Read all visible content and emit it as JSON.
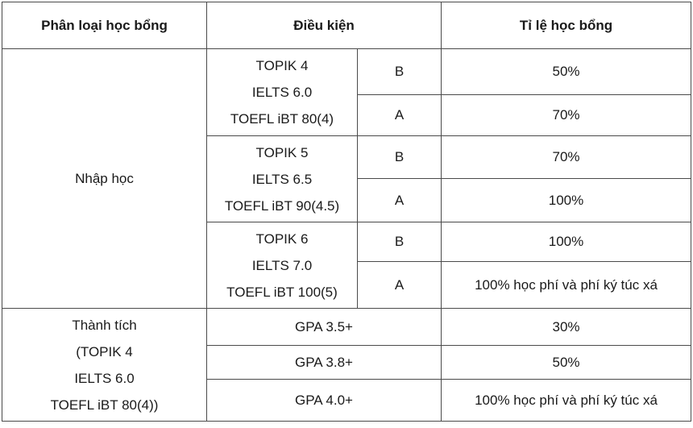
{
  "headers": {
    "category": "Phân loại học bổng",
    "condition": "Điều kiện",
    "rate": "Tỉ lệ học bổng"
  },
  "admission": {
    "label": "Nhập học",
    "groups": [
      {
        "condition_lines": [
          "TOPIK 4",
          "IELTS 6.0",
          "TOEFL iBT 80(4)"
        ],
        "tiers": [
          {
            "grade": "B",
            "rate": "50%"
          },
          {
            "grade": "A",
            "rate": "70%"
          }
        ]
      },
      {
        "condition_lines": [
          "TOPIK 5",
          "IELTS 6.5",
          "TOEFL iBT 90(4.5)"
        ],
        "tiers": [
          {
            "grade": "B",
            "rate": "70%"
          },
          {
            "grade": "A",
            "rate": "100%"
          }
        ]
      },
      {
        "condition_lines": [
          "TOPIK 6",
          "IELTS 7.0",
          "TOEFL iBT 100(5)"
        ],
        "tiers": [
          {
            "grade": "B",
            "rate": "100%"
          },
          {
            "grade": "A",
            "rate": "100% học phí và phí ký túc xá"
          }
        ]
      }
    ]
  },
  "achievement": {
    "label_lines": [
      "Thành tích",
      "(TOPIK 4",
      "IELTS 6.0",
      "TOEFL iBT 80(4))"
    ],
    "rows": [
      {
        "condition": "GPA 3.5+",
        "rate": "30%"
      },
      {
        "condition": "GPA 3.8+",
        "rate": "50%"
      },
      {
        "condition": "GPA 4.0+",
        "rate": "100% học phí và phí ký túc xá"
      }
    ]
  }
}
